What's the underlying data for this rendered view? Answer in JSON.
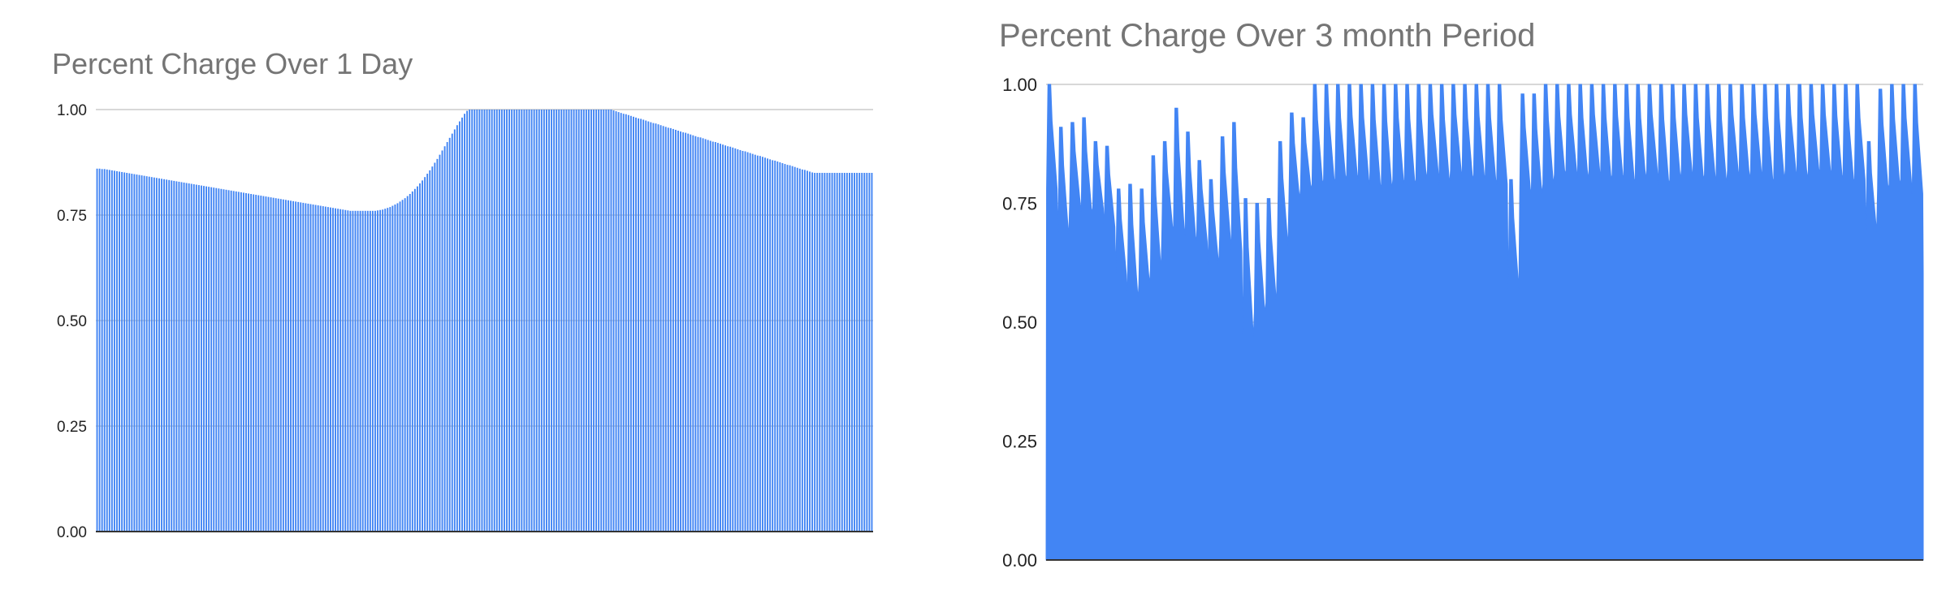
{
  "chart_data": [
    {
      "type": "bar",
      "title": "Percent Charge Over 1 Day",
      "xlabel": "",
      "ylabel": "",
      "ylim": [
        0,
        1
      ],
      "yticks": [
        "0.00",
        "0.25",
        "0.50",
        "0.75",
        "1.00"
      ],
      "grid": true,
      "legend": "none",
      "bar_count": 288,
      "color": "#4285f4",
      "values": [
        0.86,
        0.86,
        0.859,
        0.859,
        0.858,
        0.857,
        0.856,
        0.855,
        0.854,
        0.853,
        0.852,
        0.851,
        0.85,
        0.849,
        0.848,
        0.847,
        0.846,
        0.845,
        0.844,
        0.843,
        0.842,
        0.841,
        0.84,
        0.839,
        0.838,
        0.837,
        0.836,
        0.835,
        0.834,
        0.833,
        0.832,
        0.831,
        0.83,
        0.829,
        0.828,
        0.827,
        0.826,
        0.825,
        0.824,
        0.823,
        0.822,
        0.821,
        0.82,
        0.819,
        0.818,
        0.817,
        0.816,
        0.815,
        0.814,
        0.813,
        0.812,
        0.811,
        0.81,
        0.809,
        0.808,
        0.807,
        0.806,
        0.805,
        0.804,
        0.803,
        0.802,
        0.801,
        0.8,
        0.799,
        0.798,
        0.797,
        0.796,
        0.795,
        0.794,
        0.793,
        0.792,
        0.791,
        0.79,
        0.789,
        0.788,
        0.787,
        0.786,
        0.785,
        0.784,
        0.783,
        0.782,
        0.781,
        0.78,
        0.779,
        0.778,
        0.777,
        0.776,
        0.775,
        0.774,
        0.773,
        0.772,
        0.771,
        0.77,
        0.769,
        0.768,
        0.767,
        0.766,
        0.765,
        0.764,
        0.763,
        0.762,
        0.761,
        0.76,
        0.76,
        0.76,
        0.76,
        0.76,
        0.76,
        0.76,
        0.76,
        0.76,
        0.76,
        0.76,
        0.761,
        0.762,
        0.763,
        0.765,
        0.767,
        0.769,
        0.772,
        0.775,
        0.778,
        0.782,
        0.786,
        0.79,
        0.795,
        0.8,
        0.806,
        0.812,
        0.818,
        0.825,
        0.832,
        0.84,
        0.848,
        0.856,
        0.865,
        0.874,
        0.883,
        0.893,
        0.903,
        0.913,
        0.923,
        0.933,
        0.943,
        0.953,
        0.963,
        0.972,
        0.981,
        0.99,
        0.997,
        1,
        1,
        1,
        1,
        1,
        1,
        1,
        1,
        1,
        1,
        1,
        1,
        1,
        1,
        1,
        1,
        1,
        1,
        1,
        1,
        1,
        1,
        1,
        1,
        1,
        1,
        1,
        1,
        1,
        1,
        1,
        1,
        1,
        1,
        1,
        1,
        1,
        1,
        1,
        1,
        1,
        1,
        1,
        1,
        1,
        1,
        1,
        1,
        1,
        1,
        1,
        1,
        1,
        1,
        1,
        1,
        1,
        1,
        0.998,
        0.996,
        0.994,
        0.992,
        0.99,
        0.989,
        0.987,
        0.985,
        0.983,
        0.981,
        0.979,
        0.978,
        0.976,
        0.974,
        0.972,
        0.97,
        0.968,
        0.967,
        0.965,
        0.963,
        0.961,
        0.959,
        0.957,
        0.956,
        0.954,
        0.952,
        0.95,
        0.948,
        0.946,
        0.945,
        0.943,
        0.941,
        0.939,
        0.937,
        0.935,
        0.934,
        0.932,
        0.93,
        0.928,
        0.926,
        0.924,
        0.923,
        0.921,
        0.919,
        0.917,
        0.915,
        0.913,
        0.912,
        0.91,
        0.908,
        0.906,
        0.904,
        0.902,
        0.901,
        0.899,
        0.897,
        0.895,
        0.893,
        0.891,
        0.89,
        0.888,
        0.886,
        0.884,
        0.882,
        0.88,
        0.879,
        0.877,
        0.875,
        0.873,
        0.871,
        0.869,
        0.868,
        0.866,
        0.864,
        0.862,
        0.86,
        0.858,
        0.857,
        0.855,
        0.853,
        0.851,
        0.85,
        0.85,
        0.85,
        0.85,
        0.85,
        0.85,
        0.85,
        0.85,
        0.85,
        0.85,
        0.85,
        0.85,
        0.85,
        0.85,
        0.85,
        0.85,
        0.85,
        0.85,
        0.85,
        0.85,
        0.85,
        0.85,
        0.85,
        0.85
      ]
    },
    {
      "type": "area",
      "title": "Percent Charge Over 3 month Period",
      "xlabel": "",
      "ylabel": "",
      "ylim": [
        0,
        1
      ],
      "yticks": [
        "0.00",
        "0.25",
        "0.50",
        "0.75",
        "1.00"
      ],
      "grid": true,
      "legend": "none",
      "color": "#4285f4",
      "days": [
        [
          1.0,
          0.78
        ],
        [
          0.91,
          0.68
        ],
        [
          0.92,
          0.75
        ],
        [
          0.93,
          0.73
        ],
        [
          0.88,
          0.74
        ],
        [
          0.87,
          0.7
        ],
        [
          0.78,
          0.6
        ],
        [
          0.79,
          0.55
        ],
        [
          0.78,
          0.58
        ],
        [
          0.85,
          0.61
        ],
        [
          0.88,
          0.7
        ],
        [
          0.95,
          0.7
        ],
        [
          0.9,
          0.68
        ],
        [
          0.84,
          0.67
        ],
        [
          0.8,
          0.62
        ],
        [
          0.89,
          0.68
        ],
        [
          0.92,
          0.65
        ],
        [
          0.76,
          0.47
        ],
        [
          0.75,
          0.52
        ],
        [
          0.76,
          0.54
        ],
        [
          0.88,
          0.66
        ],
        [
          0.94,
          0.76
        ],
        [
          0.93,
          0.78
        ],
        [
          1.0,
          0.79
        ],
        [
          1.0,
          0.8
        ],
        [
          1.0,
          0.8
        ],
        [
          1.0,
          0.81
        ],
        [
          1.0,
          0.8
        ],
        [
          1.0,
          0.79
        ],
        [
          1.0,
          0.78
        ],
        [
          1.0,
          0.8
        ],
        [
          1.0,
          0.79
        ],
        [
          1.0,
          0.8
        ],
        [
          1.0,
          0.82
        ],
        [
          1.0,
          0.79
        ],
        [
          1.0,
          0.82
        ],
        [
          1.0,
          0.8
        ],
        [
          1.0,
          0.81
        ],
        [
          1.0,
          0.8
        ],
        [
          1.0,
          0.79
        ],
        [
          0.8,
          0.57
        ],
        [
          0.98,
          0.78
        ],
        [
          0.98,
          0.77
        ],
        [
          1.0,
          0.79
        ],
        [
          1.0,
          0.81
        ],
        [
          1.0,
          0.82
        ],
        [
          1.0,
          0.8
        ],
        [
          1.0,
          0.82
        ],
        [
          1.0,
          0.8
        ],
        [
          1.0,
          0.81
        ],
        [
          1.0,
          0.8
        ],
        [
          1.0,
          0.8
        ],
        [
          1.0,
          0.82
        ],
        [
          1.0,
          0.79
        ],
        [
          1.0,
          0.8
        ],
        [
          1.0,
          0.82
        ],
        [
          1.0,
          0.8
        ],
        [
          1.0,
          0.81
        ],
        [
          1.0,
          0.79
        ],
        [
          1.0,
          0.82
        ],
        [
          1.0,
          0.8
        ],
        [
          1.0,
          0.82
        ],
        [
          1.0,
          0.8
        ],
        [
          1.0,
          0.8
        ],
        [
          1.0,
          0.82
        ],
        [
          1.0,
          0.8
        ],
        [
          1.0,
          0.82
        ],
        [
          1.0,
          0.82
        ],
        [
          1.0,
          0.81
        ],
        [
          1.0,
          0.8
        ],
        [
          1.0,
          0.8
        ],
        [
          0.88,
          0.69
        ],
        [
          0.99,
          0.78
        ],
        [
          1.0,
          0.79
        ],
        [
          1.0,
          0.8
        ],
        [
          1.0,
          0.77
        ]
      ]
    }
  ]
}
